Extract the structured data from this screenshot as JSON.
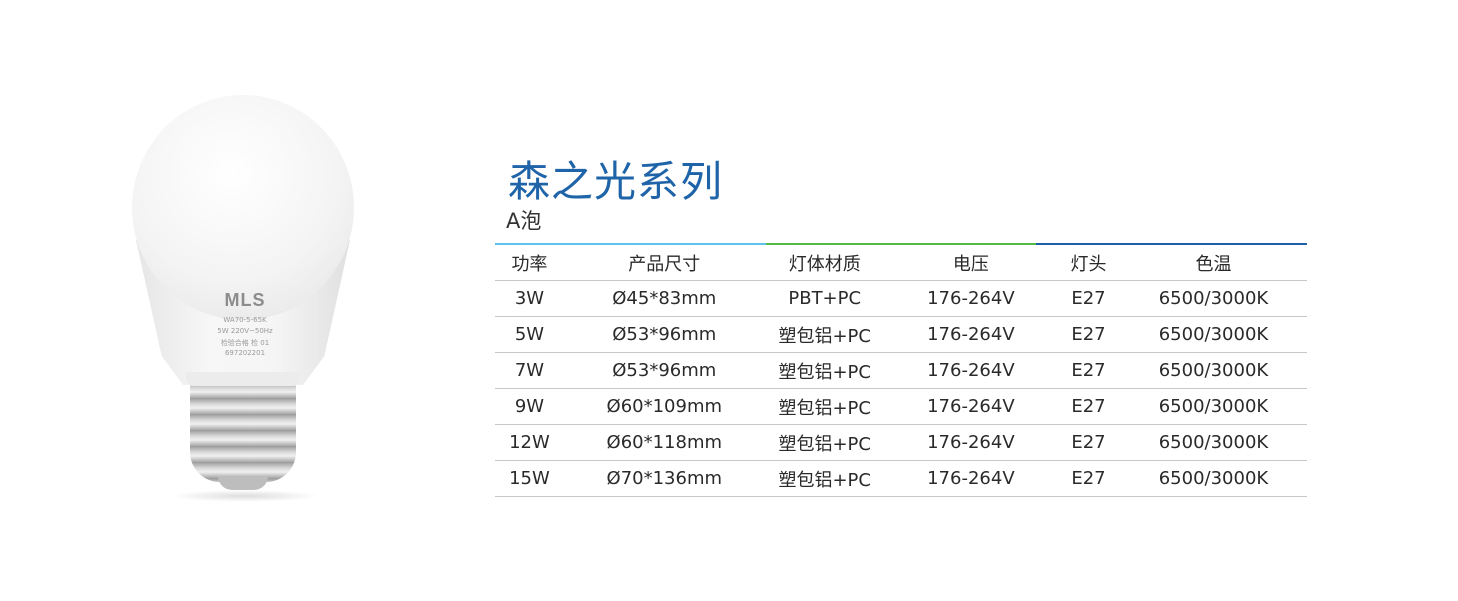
{
  "product": {
    "logo": "MLS",
    "label_lines": [
      "WA70-5-65K",
      "5W 220V~50Hz",
      "检验合格  检 01",
      "697202201"
    ]
  },
  "title": "森之光系列",
  "subtitle": "A泡",
  "colors": {
    "title": "#1f64a8",
    "bar_segments": [
      "#5cc3ec",
      "#55b947",
      "#1c5ea8"
    ]
  },
  "table": {
    "headers": [
      "功率",
      "产品尺寸",
      "灯体材质",
      "电压",
      "灯头",
      "色温"
    ],
    "rows": [
      [
        "3W",
        "Ø45*83mm",
        "PBT+PC",
        "176-264V",
        "E27",
        "6500/3000K"
      ],
      [
        "5W",
        "Ø53*96mm",
        "塑包铝+PC",
        "176-264V",
        "E27",
        "6500/3000K"
      ],
      [
        "7W",
        "Ø53*96mm",
        "塑包铝+PC",
        "176-264V",
        "E27",
        "6500/3000K"
      ],
      [
        "9W",
        "Ø60*109mm",
        "塑包铝+PC",
        "176-264V",
        "E27",
        "6500/3000K"
      ],
      [
        "12W",
        "Ø60*118mm",
        "塑包铝+PC",
        "176-264V",
        "E27",
        "6500/3000K"
      ],
      [
        "15W",
        "Ø70*136mm",
        "塑包铝+PC",
        "176-264V",
        "E27",
        "6500/3000K"
      ]
    ]
  }
}
